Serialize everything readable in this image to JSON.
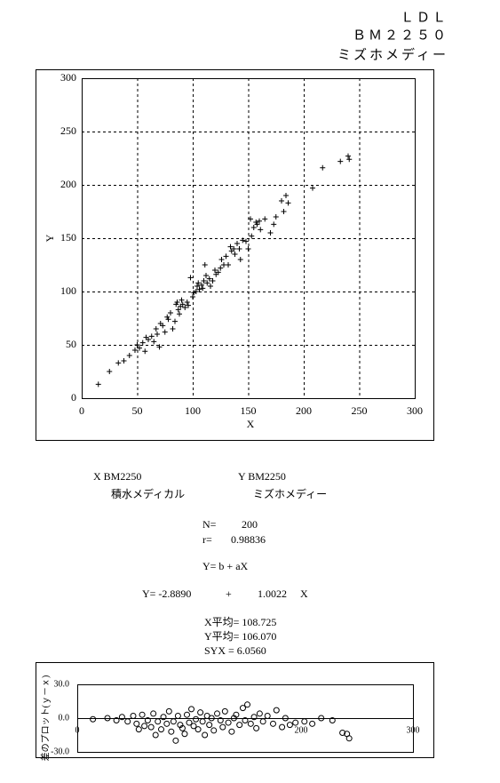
{
  "header": {
    "analyte": "ＬＤＬ",
    "model": "ＢＭ２２５０",
    "maker": "ミズホメディー"
  },
  "chart_data": [
    {
      "type": "scatter",
      "x_label": "X",
      "y_label": "Y",
      "grid": true,
      "marker": "plus",
      "color": "#000000",
      "xlim": [
        0,
        300
      ],
      "ylim": [
        0,
        300
      ],
      "xticks": [
        0,
        50,
        100,
        150,
        200,
        250,
        300
      ],
      "yticks": [
        0,
        50,
        100,
        150,
        200,
        250,
        300
      ],
      "x": [
        15,
        25,
        33,
        38,
        43,
        48,
        50,
        52,
        55,
        57,
        58,
        60,
        63,
        65,
        67,
        68,
        70,
        71,
        73,
        75,
        77,
        78,
        80,
        82,
        84,
        85,
        86,
        87,
        88,
        89,
        90,
        91,
        93,
        95,
        96,
        98,
        100,
        101,
        103,
        104,
        105,
        106,
        108,
        109,
        110,
        111,
        112,
        113,
        115,
        116,
        118,
        120,
        121,
        123,
        125,
        126,
        128,
        130,
        132,
        134,
        135,
        137,
        138,
        140,
        142,
        143,
        145,
        148,
        150,
        152,
        153,
        155,
        157,
        158,
        160,
        161,
        165,
        170,
        173,
        175,
        180,
        182,
        184,
        186,
        208,
        217,
        233,
        240,
        241
      ],
      "y": [
        13,
        25,
        33,
        35,
        40,
        45,
        50,
        47,
        52,
        44,
        57,
        55,
        58,
        53,
        65,
        60,
        48,
        70,
        68,
        62,
        76,
        74,
        80,
        65,
        72,
        88,
        90,
        83,
        79,
        86,
        92,
        88,
        85,
        90,
        87,
        113,
        95,
        99,
        100,
        105,
        108,
        102,
        106,
        103,
        110,
        125,
        115,
        108,
        112,
        105,
        110,
        120,
        116,
        118,
        122,
        130,
        125,
        133,
        125,
        142,
        138,
        140,
        135,
        145,
        140,
        130,
        148,
        147,
        140,
        168,
        152,
        160,
        165,
        163,
        166,
        158,
        168,
        155,
        163,
        170,
        185,
        175,
        190,
        183,
        197,
        216,
        222,
        227,
        224
      ]
    },
    {
      "type": "scatter",
      "y_label": "差のプロット(ｙ－ｘ)",
      "grid": false,
      "marker": "circle",
      "color": "#000000",
      "xlim": [
        0,
        300
      ],
      "ylim": [
        -30,
        30
      ],
      "xticks": [
        0,
        200,
        300
      ],
      "yticks": [
        {
          "value": -30,
          "label": "-30.0"
        },
        {
          "value": 0,
          "label": "0.0"
        },
        {
          "value": 30,
          "label": "30.0"
        }
      ],
      "x": [
        14,
        27,
        35,
        40,
        45,
        50,
        53,
        55,
        58,
        60,
        63,
        66,
        68,
        70,
        72,
        75,
        77,
        80,
        82,
        84,
        86,
        88,
        90,
        92,
        94,
        96,
        98,
        100,
        102,
        104,
        106,
        108,
        110,
        112,
        114,
        116,
        118,
        120,
        122,
        125,
        128,
        130,
        132,
        135,
        138,
        140,
        142,
        145,
        148,
        150,
        152,
        155,
        158,
        160,
        163,
        166,
        170,
        175,
        178,
        183,
        186,
        190,
        195,
        203,
        210,
        218,
        228,
        237,
        241,
        243
      ],
      "y": [
        -1,
        0,
        -2,
        1,
        -3,
        2,
        -5,
        -10,
        3,
        -7,
        -2,
        -8,
        4,
        -15,
        -3,
        -10,
        1,
        -5,
        6,
        -12,
        -3,
        -20,
        2,
        -6,
        -9,
        -14,
        3,
        -4,
        8,
        -7,
        -1,
        -10,
        5,
        -3,
        -15,
        2,
        -6,
        0,
        -11,
        4,
        -2,
        -8,
        6,
        -4,
        -12,
        0,
        3,
        -6,
        9,
        -2,
        12,
        -5,
        1,
        -9,
        4,
        -3,
        2,
        -5,
        7,
        -8,
        0,
        -6,
        -4,
        -3,
        -5,
        0,
        -2,
        -13,
        -14,
        -18
      ]
    }
  ],
  "stats": {
    "x_name": "X  BM2250",
    "y_name": "Y  BM2250",
    "x_maker": "積水メディカル",
    "y_maker": "ミズホメディー",
    "n_label": "N=",
    "n": "200",
    "r_label": "r=",
    "r": "0.98836",
    "model": "Y= b + aX",
    "eq_b": "Y= -2.8890",
    "eq_plus": "+",
    "eq_a": "1.0022",
    "eq_x": "X",
    "x_mean": "X平均= 108.725",
    "y_mean": "Y平均= 106.070",
    "syx": "SYX = 6.0560"
  }
}
